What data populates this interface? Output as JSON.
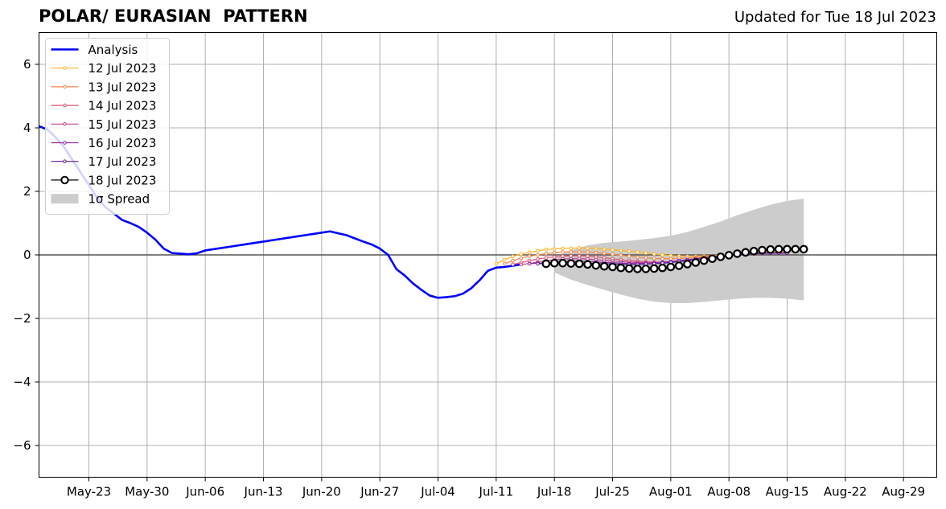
{
  "chart_data": {
    "type": "line",
    "title": "POLAR/ EURASIAN  PATTERN",
    "subtitle": "Updated for Tue 18 Jul 2023",
    "x_start_date": "2023-05-17",
    "xlim_days": [
      0,
      108
    ],
    "ylim": [
      -7,
      7
    ],
    "x_ticks": [
      {
        "d": 6,
        "label": "May-23"
      },
      {
        "d": 13,
        "label": "May-30"
      },
      {
        "d": 20,
        "label": "Jun-06"
      },
      {
        "d": 27,
        "label": "Jun-13"
      },
      {
        "d": 34,
        "label": "Jun-20"
      },
      {
        "d": 41,
        "label": "Jun-27"
      },
      {
        "d": 48,
        "label": "Jul-04"
      },
      {
        "d": 55,
        "label": "Jul-11"
      },
      {
        "d": 62,
        "label": "Jul-18"
      },
      {
        "d": 69,
        "label": "Jul-25"
      },
      {
        "d": 76,
        "label": "Aug-01"
      },
      {
        "d": 83,
        "label": "Aug-08"
      },
      {
        "d": 90,
        "label": "Aug-15"
      },
      {
        "d": 97,
        "label": "Aug-22"
      },
      {
        "d": 104,
        "label": "Aug-29"
      }
    ],
    "y_ticks": [
      -6,
      -4,
      -2,
      0,
      2,
      4,
      6
    ],
    "y_tick_labels": [
      "−6",
      "−4",
      "−2",
      "0",
      "2",
      "4",
      "6"
    ],
    "grid": true,
    "legend": {
      "placement": "top-left",
      "entries": [
        "Analysis",
        "12 Jul 2023",
        "13 Jul 2023",
        "14 Jul 2023",
        "15 Jul 2023",
        "16 Jul 2023",
        "17 Jul 2023",
        "18 Jul 2023",
        "1σ Spread"
      ]
    },
    "analysis": {
      "name": "Analysis",
      "color": "#0000ff",
      "x": [
        0,
        1,
        2,
        3,
        4,
        5,
        6,
        7,
        8,
        9,
        10,
        11,
        12,
        13,
        14,
        15,
        16,
        17,
        18,
        19,
        20,
        21,
        22,
        23,
        25,
        27,
        29,
        31,
        33,
        35,
        37,
        39,
        40,
        41,
        42,
        43,
        44,
        45,
        46,
        47,
        48,
        49,
        50,
        51,
        52,
        53,
        54,
        55,
        56,
        57,
        58
      ],
      "y": [
        4.05,
        3.95,
        3.7,
        3.4,
        3.0,
        2.6,
        2.2,
        1.8,
        1.5,
        1.3,
        1.1,
        1.0,
        0.88,
        0.7,
        0.48,
        0.2,
        0.06,
        0.04,
        0.02,
        0.05,
        0.14,
        0.18,
        0.22,
        0.26,
        0.34,
        0.42,
        0.5,
        0.58,
        0.66,
        0.74,
        0.62,
        0.42,
        0.33,
        0.2,
        0.0,
        -0.45,
        -0.65,
        -0.9,
        -1.1,
        -1.28,
        -1.35,
        -1.33,
        -1.3,
        -1.22,
        -1.05,
        -0.8,
        -0.5,
        -0.4,
        -0.38,
        -0.34,
        -0.3
      ]
    },
    "spread": {
      "name": "1σ Spread",
      "color": "#cccccc",
      "x": [
        62,
        64,
        66,
        68,
        70,
        72,
        74,
        76,
        78,
        80,
        82,
        84,
        86,
        88,
        90,
        92
      ],
      "upper": [
        -0.1,
        0.15,
        0.3,
        0.38,
        0.42,
        0.47,
        0.53,
        0.6,
        0.72,
        0.88,
        1.05,
        1.25,
        1.42,
        1.58,
        1.7,
        1.77
      ],
      "lower": [
        -0.55,
        -0.78,
        -0.95,
        -1.1,
        -1.25,
        -1.38,
        -1.47,
        -1.52,
        -1.52,
        -1.48,
        -1.43,
        -1.38,
        -1.35,
        -1.35,
        -1.38,
        -1.43
      ]
    },
    "forecasts": [
      {
        "name": "12 Jul 2023",
        "color": "#ffb327",
        "x": [
          55,
          56,
          57,
          58,
          59,
          60,
          61,
          62,
          63,
          64,
          65,
          66,
          67,
          68,
          69,
          70,
          71,
          72,
          73,
          74,
          75,
          76,
          77,
          78,
          79,
          80,
          81,
          82,
          83,
          84,
          85,
          86,
          87,
          88,
          89,
          90
        ],
        "y": [
          -0.28,
          -0.15,
          -0.05,
          0.03,
          0.08,
          0.13,
          0.17,
          0.19,
          0.2,
          0.21,
          0.22,
          0.21,
          0.2,
          0.18,
          0.16,
          0.14,
          0.12,
          0.09,
          0.06,
          0.03,
          0.0,
          -0.02,
          -0.04,
          -0.05,
          -0.05,
          -0.04,
          -0.02,
          0.0,
          0.02,
          0.04,
          0.06,
          0.08,
          0.09,
          0.1,
          0.1,
          0.1
        ]
      },
      {
        "name": "13 Jul 2023",
        "color": "#f38648",
        "x": [
          56,
          57,
          58,
          59,
          60,
          61,
          62,
          63,
          64,
          65,
          66,
          67,
          68,
          69,
          70,
          71,
          72,
          73,
          74,
          75,
          76,
          77,
          78,
          79,
          80,
          81,
          82,
          83,
          84,
          85,
          86,
          87,
          88,
          89,
          90
        ],
        "y": [
          -0.28,
          -0.18,
          -0.1,
          -0.04,
          0.0,
          0.04,
          0.07,
          0.09,
          0.1,
          0.1,
          0.09,
          0.07,
          0.05,
          0.02,
          -0.01,
          -0.04,
          -0.07,
          -0.09,
          -0.11,
          -0.12,
          -0.12,
          -0.11,
          -0.1,
          -0.08,
          -0.06,
          -0.04,
          -0.02,
          0.0,
          0.02,
          0.04,
          0.05,
          0.06,
          0.07,
          0.07,
          0.07
        ]
      },
      {
        "name": "14 Jul 2023",
        "color": "#e0566a",
        "x": [
          57,
          58,
          59,
          60,
          61,
          62,
          63,
          64,
          65,
          66,
          67,
          68,
          69,
          70,
          71,
          72,
          73,
          74,
          75,
          76,
          77,
          78,
          79,
          80,
          81,
          82,
          83,
          84,
          85,
          86,
          87,
          88,
          89,
          90
        ],
        "y": [
          -0.3,
          -0.24,
          -0.18,
          -0.13,
          -0.09,
          -0.06,
          -0.04,
          -0.03,
          -0.03,
          -0.04,
          -0.06,
          -0.09,
          -0.12,
          -0.15,
          -0.18,
          -0.2,
          -0.22,
          -0.23,
          -0.23,
          -0.22,
          -0.2,
          -0.18,
          -0.15,
          -0.12,
          -0.09,
          -0.06,
          -0.03,
          0.0,
          0.02,
          0.04,
          0.05,
          0.06,
          0.06,
          0.06
        ]
      },
      {
        "name": "15 Jul 2023",
        "color": "#c3438f",
        "x": [
          58,
          59,
          60,
          61,
          62,
          63,
          64,
          65,
          66,
          67,
          68,
          69,
          70,
          71,
          72,
          73,
          74,
          75,
          76,
          77,
          78,
          79,
          80,
          81,
          82,
          83,
          84,
          85,
          86,
          87,
          88,
          89,
          90
        ],
        "y": [
          -0.3,
          -0.27,
          -0.22,
          -0.18,
          -0.15,
          -0.13,
          -0.12,
          -0.12,
          -0.13,
          -0.15,
          -0.17,
          -0.19,
          -0.21,
          -0.23,
          -0.24,
          -0.25,
          -0.25,
          -0.24,
          -0.22,
          -0.2,
          -0.17,
          -0.14,
          -0.11,
          -0.08,
          -0.05,
          -0.02,
          0.0,
          0.02,
          0.03,
          0.04,
          0.05,
          0.05,
          0.05
        ]
      },
      {
        "name": "16 Jul 2023",
        "color": "#9226a0",
        "x": [
          59,
          60,
          61,
          62,
          63,
          64,
          65,
          66,
          67,
          68,
          69,
          70,
          71,
          72,
          73,
          74,
          75,
          76,
          77,
          78,
          79,
          80,
          81,
          82,
          83,
          84,
          85,
          86,
          87,
          88,
          89,
          90
        ],
        "y": [
          -0.28,
          -0.26,
          -0.24,
          -0.22,
          -0.21,
          -0.2,
          -0.2,
          -0.21,
          -0.22,
          -0.24,
          -0.25,
          -0.26,
          -0.27,
          -0.27,
          -0.26,
          -0.25,
          -0.23,
          -0.21,
          -0.18,
          -0.15,
          -0.12,
          -0.09,
          -0.06,
          -0.03,
          0.0,
          0.02,
          0.04,
          0.05,
          0.06,
          0.06,
          0.06,
          0.06
        ]
      },
      {
        "name": "17 Jul 2023",
        "color": "#5e1c9a",
        "x": [
          60,
          61,
          62,
          63,
          64,
          65,
          66,
          67,
          68,
          69,
          70,
          71,
          72,
          73,
          74,
          75,
          76,
          77,
          78,
          79,
          80,
          81,
          82,
          83,
          84,
          85,
          86,
          87,
          88,
          89,
          90
        ],
        "y": [
          -0.28,
          -0.27,
          -0.26,
          -0.25,
          -0.25,
          -0.25,
          -0.26,
          -0.27,
          -0.28,
          -0.29,
          -0.3,
          -0.3,
          -0.3,
          -0.29,
          -0.28,
          -0.26,
          -0.24,
          -0.21,
          -0.18,
          -0.15,
          -0.12,
          -0.09,
          -0.06,
          -0.03,
          0.0,
          0.02,
          0.04,
          0.05,
          0.06,
          0.06,
          0.06
        ]
      },
      {
        "name": "18 Jul 2023",
        "color": "#000000",
        "x": [
          61,
          62,
          63,
          64,
          65,
          66,
          67,
          68,
          69,
          70,
          71,
          72,
          73,
          74,
          75,
          76,
          77,
          78,
          79,
          80,
          81,
          82,
          83,
          84,
          85,
          86,
          87,
          88,
          89,
          90,
          91,
          92
        ],
        "y": [
          -0.28,
          -0.26,
          -0.26,
          -0.27,
          -0.28,
          -0.3,
          -0.33,
          -0.36,
          -0.38,
          -0.41,
          -0.43,
          -0.44,
          -0.44,
          -0.43,
          -0.41,
          -0.38,
          -0.34,
          -0.29,
          -0.24,
          -0.18,
          -0.12,
          -0.06,
          -0.01,
          0.04,
          0.08,
          0.12,
          0.15,
          0.17,
          0.18,
          0.18,
          0.18,
          0.18
        ]
      }
    ]
  }
}
